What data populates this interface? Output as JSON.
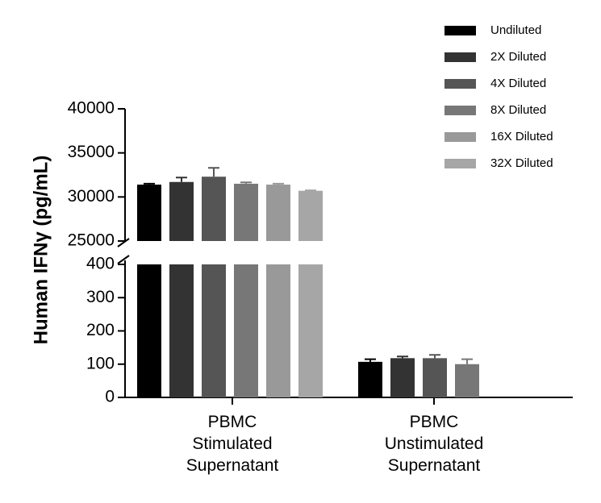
{
  "chart_data": {
    "type": "bar",
    "y_label": "Human IFNγ (pg/mL)",
    "categories": [
      [
        "PBMC",
        "Stimulated",
        "Supernatant"
      ],
      [
        "PBMC",
        "Unstimulated",
        "Supernatant"
      ]
    ],
    "y_segments": [
      {
        "ylim": [
          0,
          400
        ],
        "yticks": [
          0,
          100,
          200,
          300,
          400
        ]
      },
      {
        "ylim": [
          25000,
          40000
        ],
        "yticks": [
          25000,
          30000,
          35000,
          40000
        ]
      }
    ],
    "series": [
      {
        "name": "Undiluted",
        "color": "#000000",
        "values": [
          31400,
          107
        ],
        "errors": [
          100,
          8
        ]
      },
      {
        "name": "2X Diluted",
        "color": "#333333",
        "values": [
          31700,
          118
        ],
        "errors": [
          500,
          5
        ]
      },
      {
        "name": "4X Diluted",
        "color": "#555555",
        "values": [
          32300,
          118
        ],
        "errors": [
          1000,
          10
        ]
      },
      {
        "name": "8X Diluted",
        "color": "#777777",
        "values": [
          31500,
          100
        ],
        "errors": [
          150,
          15
        ]
      },
      {
        "name": "16X Diluted",
        "color": "#999999",
        "values": [
          31400,
          null
        ],
        "errors": [
          100,
          null
        ]
      },
      {
        "name": "32X Diluted",
        "color": "#a6a6a6",
        "values": [
          30700,
          null
        ],
        "errors": [
          50,
          null
        ]
      }
    ]
  }
}
